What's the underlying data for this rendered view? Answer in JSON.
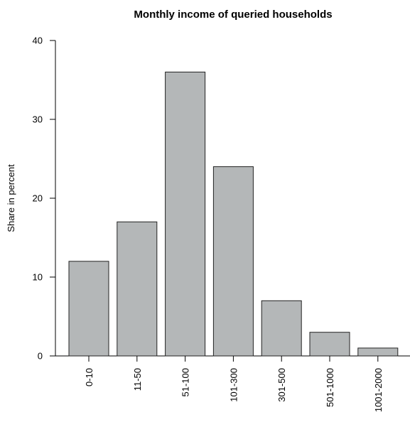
{
  "chart_data": {
    "type": "bar",
    "title": "Monthly income of queried households",
    "xlabel": "",
    "ylabel": "Share in percent",
    "categories": [
      "0-10",
      "11-50",
      "51-100",
      "101-300",
      "301-500",
      "501-1000",
      "1001-2000"
    ],
    "values": [
      12,
      17,
      36,
      24,
      7,
      3,
      1
    ],
    "ylim": [
      0,
      40
    ],
    "yticks": [
      0,
      10,
      20,
      30,
      40
    ],
    "ytick_labels": [
      "0",
      "10",
      "20",
      "30",
      "40"
    ],
    "grid": false,
    "legend": "none",
    "bar_color": "#b4b7b8",
    "bar_edge_color": "#222222"
  }
}
